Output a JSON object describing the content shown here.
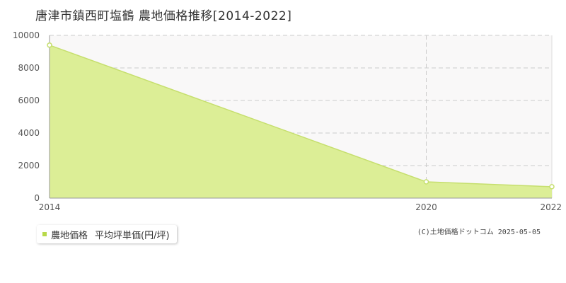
{
  "title": "唐津市鎮西町塩鶴 農地価格推移[2014-2022]",
  "legend": {
    "series_label": "農地価格",
    "unit_label": "平均坪単価(円/坪)"
  },
  "copyright": "(C)土地価格ドットコム 2025-05-05",
  "colors": {
    "area_fill": "#dcee96",
    "area_line": "#c6df6e",
    "marker_stroke": "#c6df6e",
    "legend_swatch": "#b8d94a",
    "plot_background": "#f9f8f8",
    "grid": "#cccccc"
  },
  "chart_data": {
    "type": "area",
    "title": "唐津市鎮西町塩鶴 農地価格推移[2014-2022]",
    "xlabel": "",
    "ylabel": "",
    "x": [
      2014,
      2020,
      2022
    ],
    "x_ticks": [
      "2014",
      "2020",
      "2022"
    ],
    "xlim": [
      2014,
      2022
    ],
    "ylim": [
      0,
      10000
    ],
    "y_ticks": [
      "0",
      "2000",
      "4000",
      "6000",
      "8000",
      "10000"
    ],
    "series": [
      {
        "name": "農地価格",
        "values": [
          9400,
          1000,
          700
        ]
      }
    ],
    "grid": true,
    "legend_position": "bottom-left"
  }
}
